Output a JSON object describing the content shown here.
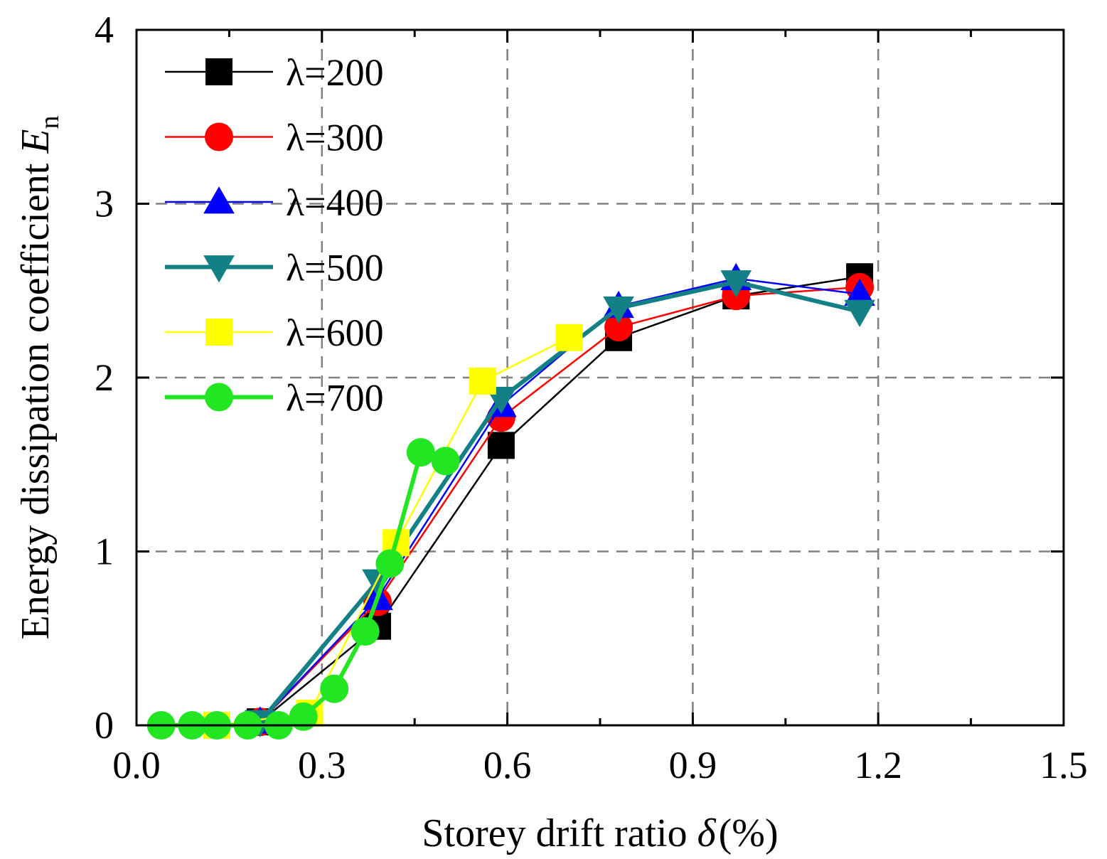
{
  "chart_data": {
    "type": "line",
    "xlabel": "Storey drift ratio",
    "xlabel_symbol": "δ",
    "xlabel_unit": "(%)",
    "ylabel": "Energy dissipation coefficient",
    "ylabel_symbol": "E",
    "ylabel_subscript": "n",
    "xlim": [
      0.0,
      1.5
    ],
    "ylim": [
      0,
      4
    ],
    "xticks": [
      0.0,
      0.3,
      0.6,
      0.9,
      1.2,
      1.5
    ],
    "xtick_labels": [
      "0.0",
      "0.3",
      "0.6",
      "0.9",
      "1.2",
      "1.5"
    ],
    "yticks": [
      0,
      1,
      2,
      3,
      4
    ],
    "ytick_labels": [
      "0",
      "1",
      "2",
      "3",
      "4"
    ],
    "grid": true,
    "legend_position": "top-left",
    "series": [
      {
        "name": "λ=200",
        "color": "#000000",
        "marker": "square",
        "line_width": 2.5,
        "x": [
          0.2,
          0.39,
          0.59,
          0.78,
          0.97,
          1.17
        ],
        "y": [
          0.02,
          0.57,
          1.61,
          2.23,
          2.47,
          2.58
        ]
      },
      {
        "name": "λ=300",
        "color": "#ff0000",
        "marker": "circle",
        "line_width": 2.5,
        "x": [
          0.2,
          0.39,
          0.59,
          0.78,
          0.97,
          1.17
        ],
        "y": [
          0.02,
          0.71,
          1.77,
          2.29,
          2.47,
          2.52
        ]
      },
      {
        "name": "λ=400",
        "color": "#0000ff",
        "marker": "triangle-up",
        "line_width": 2.5,
        "x": [
          0.2,
          0.39,
          0.59,
          0.78,
          0.97,
          1.17
        ],
        "y": [
          0.02,
          0.73,
          1.84,
          2.41,
          2.57,
          2.48
        ]
      },
      {
        "name": "λ=500",
        "color": "#138086",
        "marker": "triangle-down",
        "line_width": 6,
        "x": [
          0.2,
          0.39,
          0.59,
          0.78,
          0.97,
          1.17
        ],
        "y": [
          0.02,
          0.83,
          1.88,
          2.4,
          2.55,
          2.38
        ]
      },
      {
        "name": "λ=600",
        "color": "#ffff00",
        "marker": "square",
        "line_width": 2.5,
        "x": [
          0.13,
          0.28,
          0.42,
          0.56,
          0.7
        ],
        "y": [
          0.0,
          0.07,
          1.05,
          1.98,
          2.23
        ]
      },
      {
        "name": "λ=700",
        "color": "#22e622",
        "marker": "circle",
        "line_width": 6,
        "x": [
          0.04,
          0.09,
          0.13,
          0.18,
          0.23,
          0.27,
          0.32,
          0.37,
          0.41,
          0.46,
          0.5
        ],
        "y": [
          0.0,
          0.0,
          0.0,
          0.0,
          0.0,
          0.05,
          0.21,
          0.54,
          0.93,
          1.57,
          1.52
        ]
      }
    ]
  }
}
